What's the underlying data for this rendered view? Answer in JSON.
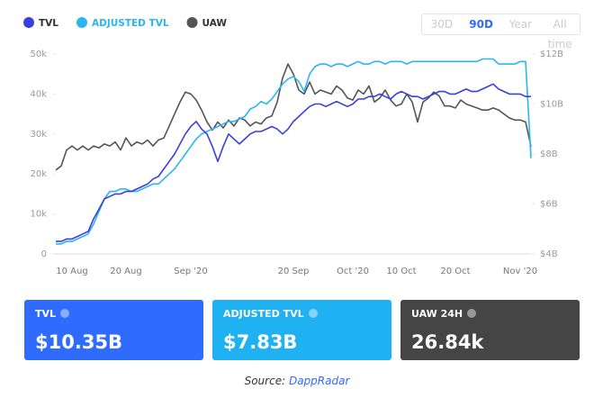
{
  "chart_data": {
    "type": "line",
    "categories": [
      null,
      null,
      null,
      "10 Aug",
      null,
      null,
      null,
      null,
      null,
      null,
      null,
      null,
      null,
      "20 Aug",
      null,
      null,
      null,
      null,
      null,
      null,
      null,
      null,
      null,
      null,
      null,
      "Sep '20",
      null,
      null,
      null,
      null,
      null,
      null,
      null,
      null,
      null,
      null,
      null,
      null,
      null,
      null,
      null,
      null,
      null,
      null,
      "20 Sep",
      null,
      null,
      null,
      null,
      null,
      null,
      null,
      null,
      null,
      null,
      "Oct '20",
      null,
      null,
      null,
      null,
      null,
      null,
      null,
      null,
      "10 Oct",
      null,
      null,
      null,
      null,
      null,
      null,
      null,
      null,
      null,
      "20 Oct",
      null,
      null,
      null,
      null,
      null,
      null,
      null,
      null,
      null,
      null,
      null,
      "Nov '20",
      null,
      null
    ],
    "series": [
      {
        "name": "TVL",
        "color": "#3b3fe0",
        "axis": "y2",
        "values": [
          4.5,
          4.5,
          4.6,
          4.6,
          4.7,
          4.8,
          4.9,
          5.4,
          5.8,
          6.2,
          6.3,
          6.4,
          6.4,
          6.5,
          6.5,
          6.6,
          6.7,
          6.8,
          7.0,
          7.1,
          7.4,
          7.7,
          8.0,
          8.4,
          8.8,
          9.1,
          9.3,
          9.0,
          8.8,
          8.3,
          7.7,
          8.3,
          8.8,
          8.6,
          8.4,
          8.6,
          8.8,
          8.9,
          8.9,
          9.0,
          9.1,
          9.0,
          8.8,
          9.0,
          9.3,
          9.5,
          9.7,
          9.9,
          10.0,
          10.0,
          9.9,
          10.0,
          10.1,
          10.0,
          9.9,
          10.0,
          10.2,
          10.2,
          10.3,
          10.3,
          10.4,
          10.3,
          10.2,
          10.4,
          10.5,
          10.4,
          10.3,
          10.3,
          10.2,
          10.3,
          10.4,
          10.5,
          10.5,
          10.4,
          10.4,
          10.5,
          10.6,
          10.5,
          10.5,
          10.6,
          10.7,
          10.8,
          10.6,
          10.5,
          10.4,
          10.4,
          10.4,
          10.3,
          10.3
        ]
      },
      {
        "name": "ADJUSTED TVL",
        "color": "#2bb5f2",
        "axis": "y2",
        "values": [
          4.4,
          4.4,
          4.5,
          4.5,
          4.6,
          4.7,
          4.8,
          5.2,
          5.7,
          6.2,
          6.5,
          6.5,
          6.6,
          6.6,
          6.5,
          6.5,
          6.6,
          6.7,
          6.8,
          6.8,
          7.0,
          7.2,
          7.4,
          7.7,
          8.0,
          8.3,
          8.6,
          8.8,
          8.9,
          9.0,
          9.1,
          9.2,
          9.3,
          9.3,
          9.4,
          9.5,
          9.8,
          9.9,
          10.1,
          10.0,
          10.2,
          10.5,
          10.8,
          11.0,
          11.1,
          10.9,
          10.5,
          11.2,
          11.5,
          11.6,
          11.6,
          11.5,
          11.6,
          11.6,
          11.5,
          11.6,
          11.7,
          11.6,
          11.6,
          11.7,
          11.7,
          11.6,
          11.7,
          11.7,
          11.7,
          11.6,
          11.7,
          11.7,
          11.7,
          11.7,
          11.7,
          11.7,
          11.7,
          11.7,
          11.7,
          11.7,
          11.7,
          11.7,
          11.7,
          11.8,
          11.8,
          11.8,
          11.6,
          11.6,
          11.6,
          11.6,
          11.7,
          11.7,
          7.83
        ]
      },
      {
        "name": "UAW",
        "color": "#555555",
        "axis": "y",
        "values": [
          21000,
          22000,
          26000,
          27000,
          26000,
          27000,
          26000,
          27000,
          26500,
          27500,
          27000,
          28000,
          26000,
          29000,
          27000,
          28000,
          27500,
          28500,
          27000,
          28500,
          29000,
          32000,
          35000,
          38000,
          40500,
          40000,
          38500,
          36000,
          33000,
          31000,
          33000,
          31500,
          33500,
          32000,
          34000,
          33500,
          32000,
          33000,
          32500,
          34000,
          34500,
          38000,
          44000,
          47500,
          45000,
          41000,
          40000,
          43000,
          40000,
          41000,
          40500,
          40000,
          42000,
          41000,
          39000,
          38500,
          41000,
          40000,
          42000,
          38000,
          39000,
          41000,
          38500,
          37000,
          37500,
          40000,
          38000,
          33000,
          38000,
          39000,
          40500,
          39500,
          37000,
          37000,
          36500,
          38500,
          37500,
          37000,
          36500,
          36000,
          36000,
          36500,
          36000,
          35000,
          34000,
          33500,
          33500,
          33000,
          26840
        ]
      }
    ],
    "ylim": [
      0,
      50000
    ],
    "yticks": [
      0,
      {
        "value": 10000,
        "label": "10k"
      },
      {
        "value": 20000,
        "label": "20k"
      },
      {
        "value": 30000,
        "label": "30k"
      },
      {
        "value": 40000,
        "label": "40k"
      },
      {
        "value": 50000,
        "label": "50k"
      }
    ],
    "y2lim": [
      4,
      12
    ],
    "y2ticks": [
      {
        "value": 4,
        "label": "$4B"
      },
      {
        "value": 6,
        "label": "$6B"
      },
      {
        "value": 8,
        "label": "$8B"
      },
      {
        "value": 10,
        "label": "$10B"
      },
      {
        "value": 12,
        "label": "$12B"
      }
    ],
    "grid": false,
    "legend": "top-left"
  },
  "ranges": [
    "30D",
    "90D",
    "Year",
    "All time"
  ],
  "active_range": "90D",
  "stats": [
    {
      "label": "TVL",
      "value": "$10.35B",
      "color": "#2f6bff"
    },
    {
      "label": "ADJUSTED TVL",
      "value": "$7.83B",
      "color": "#1fb1f1"
    },
    {
      "label": "UAW 24H",
      "value": "26.84k",
      "color": "#454545"
    }
  ],
  "source": {
    "prefix": "Source:",
    "link": "DappRadar"
  }
}
